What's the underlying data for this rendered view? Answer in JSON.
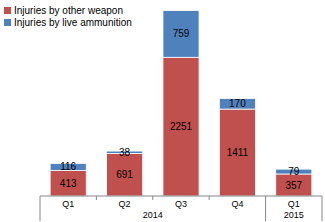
{
  "chart_data": {
    "type": "bar",
    "stacked": true,
    "data_labels": true,
    "tick_labels": "x",
    "legend": "top-left",
    "categories": [
      "Q1",
      "Q2",
      "Q3",
      "Q4",
      "Q1"
    ],
    "category_groups": [
      {
        "label": "2014",
        "count": 4
      },
      {
        "label": "2015",
        "count": 1
      }
    ],
    "series": [
      {
        "name": "Injuries by other weapon",
        "color": "#c0504d",
        "values": [
          413,
          691,
          2251,
          1411,
          357
        ]
      },
      {
        "name": "Injuries by live ammunition",
        "color": "#4f81bd",
        "values": [
          116,
          38,
          759,
          170,
          79
        ]
      }
    ],
    "ylim": [
      0,
      3100
    ]
  }
}
